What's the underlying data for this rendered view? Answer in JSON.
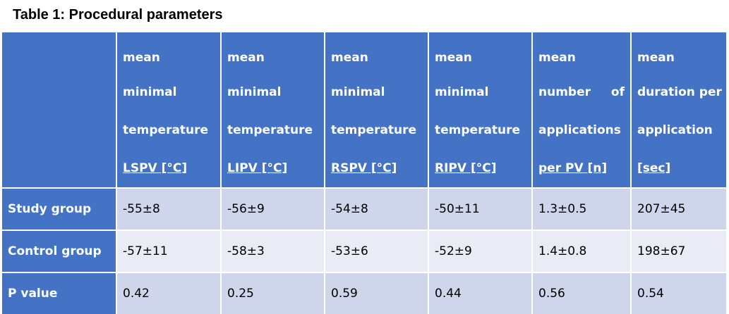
{
  "title": "Table 1: Procedural parameters",
  "header": {
    "corner": "",
    "columns": [
      {
        "l1": "mean",
        "l2": "minimal",
        "l3": "temperature",
        "l4": "LSPV [°C]"
      },
      {
        "l1": "mean",
        "l2": "minimal",
        "l3": "temperature",
        "l4": "LIPV [°C]"
      },
      {
        "l1": "mean",
        "l2": "minimal",
        "l3": "temperature",
        "l4": "RSPV [°C]"
      },
      {
        "l1": "mean",
        "l2": "minimal",
        "l3": "temperature",
        "l4": "RIPV [°C]"
      },
      {
        "l1": "mean",
        "l2a": "number",
        "l2b": "of",
        "l3": "applications",
        "l4": "per PV [n]"
      },
      {
        "l1": "mean",
        "l2": "duration per",
        "l3": "application",
        "l4": "[sec]"
      }
    ]
  },
  "rows": [
    {
      "label": "Study group",
      "cells": [
        "-55±8",
        "-56±9",
        "-54±8",
        "-50±11",
        "1.3±0.5",
        "207±45"
      ]
    },
    {
      "label": "Control group",
      "cells": [
        "-57±11",
        "-58±3",
        "-53±6",
        "-52±9",
        "1.4±0.8",
        "198±67"
      ]
    },
    {
      "label": "P value",
      "cells": [
        "0.42",
        "0.25",
        "0.59",
        "0.44",
        "0.56",
        "0.54"
      ]
    }
  ],
  "colors": {
    "header_bg": "#4472c4",
    "row_band_dark": "#cfd5ea",
    "row_band_light": "#e9ebf5"
  }
}
